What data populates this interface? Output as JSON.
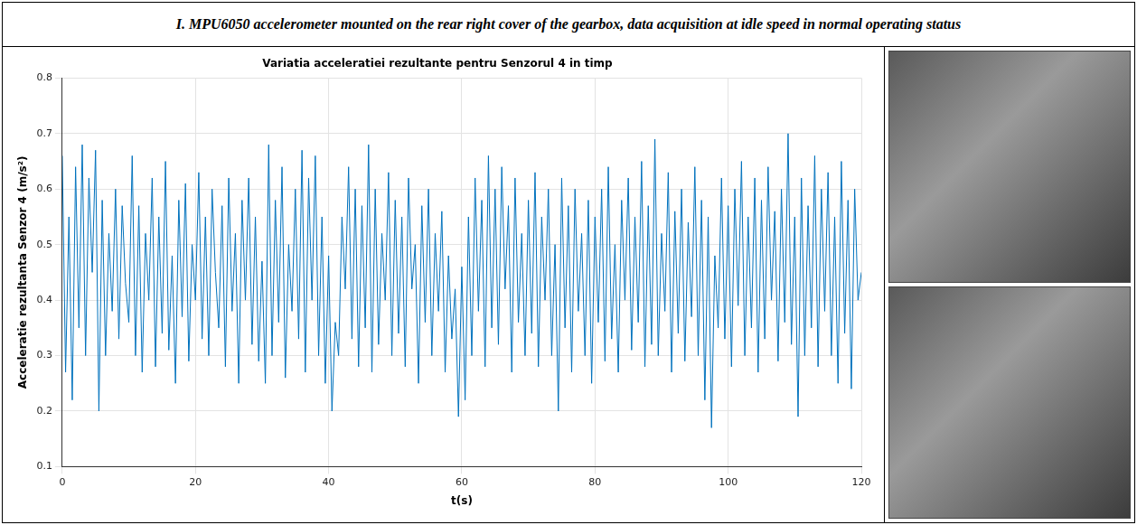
{
  "header": {
    "title": "I. MPU6050 accelerometer mounted on the rear right cover of the gearbox, data acquisition at idle speed in normal operating status"
  },
  "chart_data": {
    "type": "line",
    "title": "Variatia acceleratiei rezultante pentru Senzorul 4 in timp",
    "x_label": "t(s)",
    "y_label": "Acceleratie rezultanta Senzor 4 (m/s²)",
    "color": "#0072bd",
    "grid": true,
    "xlim": [
      0,
      120
    ],
    "xticks": [
      0,
      20,
      40,
      60,
      80,
      100,
      120
    ],
    "ylim": [
      0.1,
      0.8
    ],
    "yticks": [
      0.1,
      0.2,
      0.3,
      0.4,
      0.5,
      0.6,
      0.7,
      0.8
    ],
    "x": [
      0,
      0.5,
      1,
      1.5,
      2,
      2.5,
      3,
      3.5,
      4,
      4.5,
      5,
      5.5,
      6,
      6.5,
      7,
      7.5,
      8,
      8.5,
      9,
      9.5,
      10,
      10.5,
      11,
      11.5,
      12,
      12.5,
      13,
      13.5,
      14,
      14.5,
      15,
      15.5,
      16,
      16.5,
      17,
      17.5,
      18,
      18.5,
      19,
      19.5,
      20,
      20.5,
      21,
      21.5,
      22,
      22.5,
      23,
      23.5,
      24,
      24.5,
      25,
      25.5,
      26,
      26.5,
      27,
      27.5,
      28,
      28.5,
      29,
      29.5,
      30,
      30.5,
      31,
      31.5,
      32,
      32.5,
      33,
      33.5,
      34,
      34.5,
      35,
      35.5,
      36,
      36.5,
      37,
      37.5,
      38,
      38.5,
      39,
      39.5,
      40,
      40.5,
      41,
      41.5,
      42,
      42.5,
      43,
      43.5,
      44,
      44.5,
      45,
      45.5,
      46,
      46.5,
      47,
      47.5,
      48,
      48.5,
      49,
      49.5,
      50,
      50.5,
      51,
      51.5,
      52,
      52.5,
      53,
      53.5,
      54,
      54.5,
      55,
      55.5,
      56,
      56.5,
      57,
      57.5,
      58,
      58.5,
      59,
      59.5,
      60,
      60.5,
      61,
      61.5,
      62,
      62.5,
      63,
      63.5,
      64,
      64.5,
      65,
      65.5,
      66,
      66.5,
      67,
      67.5,
      68,
      68.5,
      69,
      69.5,
      70,
      70.5,
      71,
      71.5,
      72,
      72.5,
      73,
      73.5,
      74,
      74.5,
      75,
      75.5,
      76,
      76.5,
      77,
      77.5,
      78,
      78.5,
      79,
      79.5,
      80,
      80.5,
      81,
      81.5,
      82,
      82.5,
      83,
      83.5,
      84,
      84.5,
      85,
      85.5,
      86,
      86.5,
      87,
      87.5,
      88,
      88.5,
      89,
      89.5,
      90,
      90.5,
      91,
      91.5,
      92,
      92.5,
      93,
      93.5,
      94,
      94.5,
      95,
      95.5,
      96,
      96.5,
      97,
      97.5,
      98,
      98.5,
      99,
      99.5,
      100,
      100.5,
      101,
      101.5,
      102,
      102.5,
      103,
      103.5,
      104,
      104.5,
      105,
      105.5,
      106,
      106.5,
      107,
      107.5,
      108,
      108.5,
      109,
      109.5,
      110,
      110.5,
      111,
      111.5,
      112,
      112.5,
      113,
      113.5,
      114,
      114.5,
      115,
      115.5,
      116,
      116.5,
      117,
      117.5,
      118,
      118.5,
      119,
      119.5,
      120
    ],
    "values": [
      0.66,
      0.27,
      0.55,
      0.22,
      0.64,
      0.35,
      0.68,
      0.3,
      0.62,
      0.45,
      0.67,
      0.2,
      0.58,
      0.3,
      0.52,
      0.38,
      0.6,
      0.33,
      0.57,
      0.43,
      0.36,
      0.66,
      0.3,
      0.57,
      0.27,
      0.52,
      0.4,
      0.62,
      0.28,
      0.55,
      0.34,
      0.65,
      0.31,
      0.48,
      0.25,
      0.58,
      0.37,
      0.61,
      0.29,
      0.5,
      0.4,
      0.63,
      0.33,
      0.55,
      0.3,
      0.6,
      0.45,
      0.35,
      0.57,
      0.28,
      0.62,
      0.38,
      0.52,
      0.25,
      0.58,
      0.4,
      0.62,
      0.32,
      0.55,
      0.29,
      0.47,
      0.25,
      0.68,
      0.3,
      0.58,
      0.36,
      0.64,
      0.26,
      0.5,
      0.38,
      0.6,
      0.33,
      0.67,
      0.27,
      0.62,
      0.4,
      0.66,
      0.3,
      0.55,
      0.25,
      0.48,
      0.2,
      0.36,
      0.3,
      0.55,
      0.42,
      0.64,
      0.33,
      0.6,
      0.28,
      0.57,
      0.35,
      0.68,
      0.27,
      0.6,
      0.32,
      0.52,
      0.4,
      0.63,
      0.3,
      0.58,
      0.34,
      0.55,
      0.28,
      0.62,
      0.42,
      0.5,
      0.25,
      0.57,
      0.36,
      0.6,
      0.3,
      0.52,
      0.38,
      0.56,
      0.27,
      0.48,
      0.33,
      0.42,
      0.19,
      0.46,
      0.22,
      0.55,
      0.3,
      0.62,
      0.38,
      0.58,
      0.28,
      0.66,
      0.35,
      0.6,
      0.32,
      0.64,
      0.42,
      0.57,
      0.27,
      0.62,
      0.36,
      0.52,
      0.3,
      0.58,
      0.34,
      0.63,
      0.28,
      0.55,
      0.4,
      0.6,
      0.3,
      0.5,
      0.2,
      0.62,
      0.35,
      0.57,
      0.27,
      0.6,
      0.38,
      0.52,
      0.3,
      0.58,
      0.25,
      0.55,
      0.36,
      0.6,
      0.29,
      0.64,
      0.33,
      0.5,
      0.27,
      0.58,
      0.4,
      0.62,
      0.31,
      0.55,
      0.36,
      0.65,
      0.28,
      0.57,
      0.32,
      0.69,
      0.3,
      0.52,
      0.38,
      0.63,
      0.27,
      0.56,
      0.34,
      0.6,
      0.29,
      0.54,
      0.37,
      0.64,
      0.3,
      0.58,
      0.22,
      0.55,
      0.17,
      0.48,
      0.35,
      0.62,
      0.33,
      0.57,
      0.28,
      0.6,
      0.39,
      0.65,
      0.3,
      0.55,
      0.35,
      0.62,
      0.27,
      0.58,
      0.33,
      0.64,
      0.4,
      0.56,
      0.29,
      0.6,
      0.36,
      0.7,
      0.32,
      0.55,
      0.19,
      0.62,
      0.3,
      0.57,
      0.35,
      0.66,
      0.28,
      0.6,
      0.38,
      0.63,
      0.3,
      0.55,
      0.25,
      0.65,
      0.34,
      0.58,
      0.24,
      0.6,
      0.4,
      0.45
    ]
  }
}
